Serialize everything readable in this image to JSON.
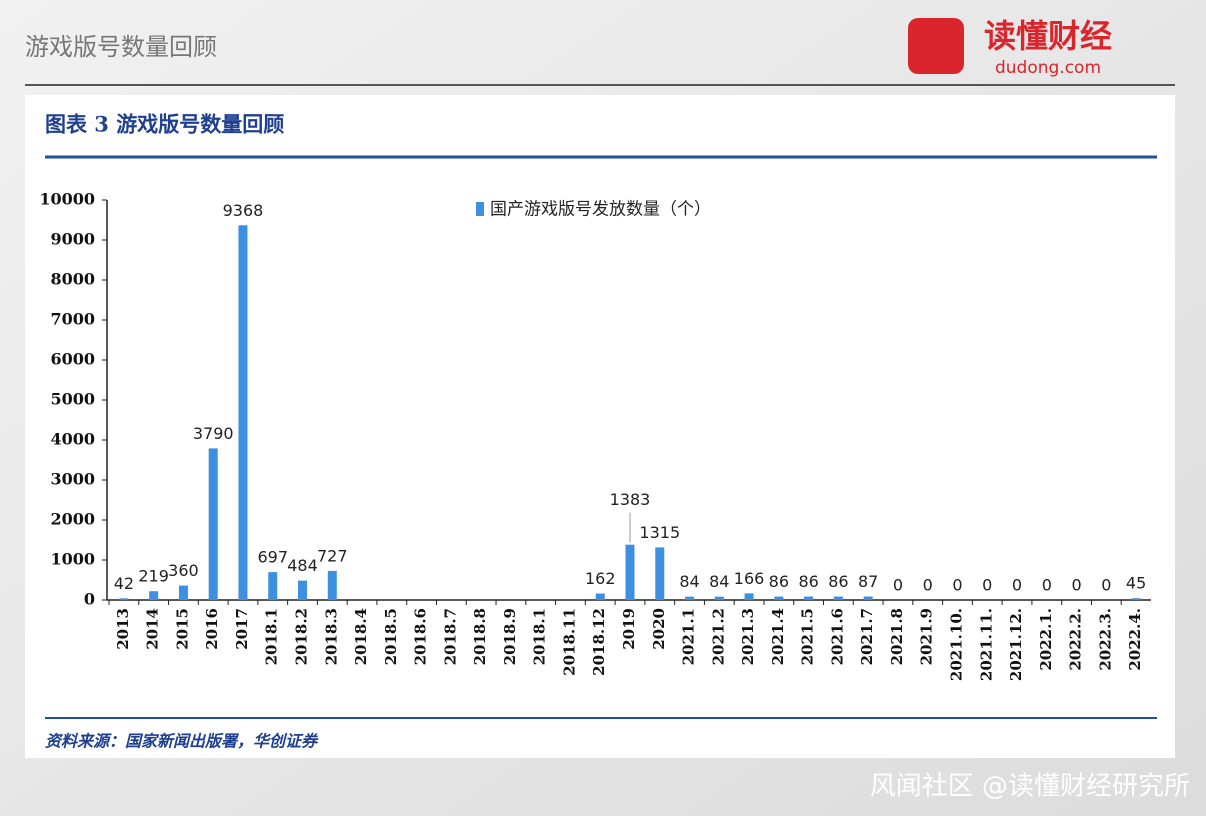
{
  "header": {
    "title": "游戏版号数量回顾",
    "logo": "读懂财经",
    "logo_url": "dudong.com"
  },
  "chart_data": {
    "type": "bar",
    "title": "图表 3 游戏版号数量回顾",
    "categories": [
      "2013",
      "2014",
      "2015",
      "2016",
      "2017",
      "2018.1",
      "2018.2",
      "2018.3",
      "2018.4",
      "2018.5",
      "2018.6",
      "2018.7",
      "2018.8",
      "2018.9",
      "2018.1",
      "2018.11",
      "2018.12",
      "2019",
      "2020",
      "2021.1",
      "2021.2",
      "2021.3",
      "2021.4",
      "2021.5",
      "2021.6",
      "2021.7",
      "2021.8",
      "2021.9",
      "2021.10.",
      "2021.11.",
      "2021.12.",
      "2022.1.",
      "2022.2.",
      "2022.3.",
      "2022.4."
    ],
    "series": [
      {
        "name": "国产游戏版号发放数量（个）",
        "color": "#3d8fe0",
        "values": [
          42,
          219,
          360,
          3790,
          9368,
          697,
          484,
          727,
          null,
          null,
          null,
          null,
          null,
          null,
          null,
          null,
          162,
          1383,
          1315,
          84,
          84,
          166,
          86,
          86,
          86,
          87,
          0,
          0,
          0,
          0,
          0,
          0,
          0,
          0,
          45
        ]
      }
    ],
    "ylim": [
      0,
      10000
    ],
    "yticks": [
      0,
      1000,
      2000,
      3000,
      4000,
      5000,
      6000,
      7000,
      8000,
      9000,
      10000
    ],
    "source": "资料来源：国家新闻出版署，华创证券"
  },
  "footer": {
    "watermark": "风闻社区 @读懂财经研究所"
  }
}
